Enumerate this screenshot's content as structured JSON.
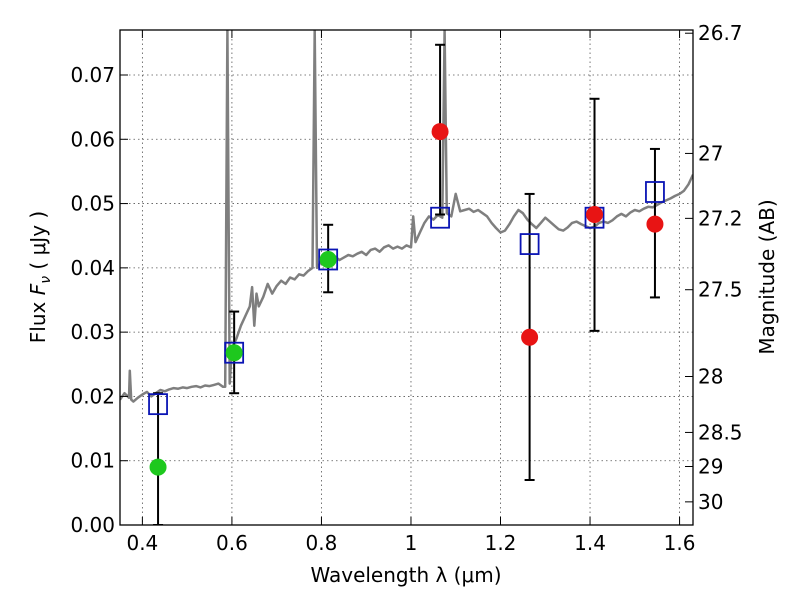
{
  "chart_data": {
    "type": "scatter",
    "xlabel": "Wavelength  λ (μm)",
    "ylabel_prefix": "Flux  ",
    "ylabel_symbol": "F",
    "ylabel_subscript": "ν",
    "ylabel_suffix": " ( μJy )",
    "ylabel_right": "Magnitude (AB)",
    "xlim": [
      0.35,
      1.63
    ],
    "ylim": [
      0.0,
      0.077
    ],
    "grid": true,
    "x_ticks": [
      0.4,
      0.6,
      0.8,
      1.0,
      1.2,
      1.4,
      1.6
    ],
    "x_tick_labels": [
      "0.4",
      "0.6",
      "0.8",
      "1",
      "1.2",
      "1.4",
      "1.6"
    ],
    "y_ticks": [
      0.0,
      0.01,
      0.02,
      0.03,
      0.04,
      0.05,
      0.06,
      0.07
    ],
    "y_tick_labels": [
      "0.00",
      "0.01",
      "0.02",
      "0.03",
      "0.04",
      "0.05",
      "0.06",
      "0.07"
    ],
    "right_ticks": [
      {
        "flux": 0.0765,
        "label": "26.7"
      },
      {
        "flux": 0.0578,
        "label": "27"
      },
      {
        "flux": 0.0477,
        "label": "27.2"
      },
      {
        "flux": 0.0366,
        "label": "27.5"
      },
      {
        "flux": 0.0231,
        "label": "28"
      },
      {
        "flux": 0.0144,
        "label": "28.5"
      },
      {
        "flux": 0.0091,
        "label": "29"
      },
      {
        "flux": 0.0036,
        "label": "30"
      }
    ],
    "series": [
      {
        "name": "model-spectrum",
        "style": "line",
        "color": "#7f7f7f",
        "x": [
          0.35,
          0.36,
          0.37,
          0.372,
          0.375,
          0.38,
          0.39,
          0.4,
          0.41,
          0.42,
          0.43,
          0.44,
          0.45,
          0.46,
          0.47,
          0.48,
          0.49,
          0.5,
          0.51,
          0.52,
          0.53,
          0.54,
          0.55,
          0.56,
          0.57,
          0.58,
          0.585,
          0.59,
          0.595,
          0.6,
          0.61,
          0.62,
          0.63,
          0.64,
          0.645,
          0.65,
          0.655,
          0.66,
          0.67,
          0.68,
          0.69,
          0.7,
          0.71,
          0.72,
          0.73,
          0.74,
          0.75,
          0.76,
          0.77,
          0.78,
          0.785,
          0.79,
          0.795,
          0.8,
          0.81,
          0.82,
          0.83,
          0.84,
          0.85,
          0.86,
          0.87,
          0.88,
          0.89,
          0.9,
          0.91,
          0.92,
          0.93,
          0.94,
          0.95,
          0.96,
          0.97,
          0.98,
          0.99,
          1.0,
          1.005,
          1.01,
          1.02,
          1.03,
          1.04,
          1.05,
          1.06,
          1.07,
          1.075,
          1.08,
          1.09,
          1.1,
          1.11,
          1.12,
          1.13,
          1.14,
          1.15,
          1.16,
          1.17,
          1.18,
          1.19,
          1.2,
          1.21,
          1.22,
          1.23,
          1.24,
          1.25,
          1.26,
          1.27,
          1.28,
          1.29,
          1.3,
          1.31,
          1.32,
          1.33,
          1.34,
          1.35,
          1.36,
          1.37,
          1.38,
          1.39,
          1.4,
          1.41,
          1.42,
          1.43,
          1.44,
          1.45,
          1.46,
          1.47,
          1.48,
          1.49,
          1.5,
          1.51,
          1.52,
          1.53,
          1.54,
          1.55,
          1.56,
          1.57,
          1.58,
          1.59,
          1.6,
          1.61,
          1.62,
          1.63
        ],
        "y": [
          0.0195,
          0.0205,
          0.0198,
          0.024,
          0.0195,
          0.0192,
          0.0198,
          0.0203,
          0.0207,
          0.02,
          0.0205,
          0.021,
          0.0208,
          0.0211,
          0.0213,
          0.0212,
          0.0214,
          0.0213,
          0.0215,
          0.0216,
          0.0214,
          0.0217,
          0.0216,
          0.0218,
          0.022,
          0.0215,
          0.0215,
          0.077,
          0.022,
          0.0275,
          0.029,
          0.031,
          0.0325,
          0.034,
          0.037,
          0.031,
          0.036,
          0.034,
          0.0355,
          0.0375,
          0.036,
          0.0372,
          0.038,
          0.0375,
          0.0385,
          0.0382,
          0.039,
          0.0388,
          0.0395,
          0.04,
          0.077,
          0.04,
          0.0405,
          0.041,
          0.0415,
          0.041,
          0.0418,
          0.0412,
          0.0416,
          0.042,
          0.0418,
          0.0422,
          0.0425,
          0.042,
          0.0428,
          0.043,
          0.0425,
          0.0432,
          0.0435,
          0.043,
          0.0433,
          0.043,
          0.0435,
          0.0432,
          0.048,
          0.044,
          0.0455,
          0.047,
          0.048,
          0.0475,
          0.0482,
          0.0478,
          0.077,
          0.0485,
          0.048,
          0.0515,
          0.0488,
          0.049,
          0.0492,
          0.0487,
          0.049,
          0.0485,
          0.048,
          0.047,
          0.0462,
          0.0455,
          0.0458,
          0.0468,
          0.048,
          0.049,
          0.0485,
          0.0475,
          0.0468,
          0.0462,
          0.047,
          0.0478,
          0.0472,
          0.0466,
          0.046,
          0.0458,
          0.0463,
          0.047,
          0.0472,
          0.0468,
          0.0465,
          0.0462,
          0.0464,
          0.047,
          0.0472,
          0.047,
          0.0474,
          0.048,
          0.0484,
          0.048,
          0.0486,
          0.049,
          0.0488,
          0.0492,
          0.0495,
          0.0494,
          0.0498,
          0.0502,
          0.0505,
          0.0508,
          0.0512,
          0.0515,
          0.052,
          0.053,
          0.0545
        ]
      },
      {
        "name": "model-photometry",
        "style": "open-square",
        "color": "#0a14b4",
        "x": [
          0.435,
          0.605,
          0.815,
          1.065,
          1.265,
          1.41,
          1.545
        ],
        "y": [
          0.0188,
          0.0268,
          0.0413,
          0.0478,
          0.0437,
          0.0478,
          0.0518
        ]
      },
      {
        "name": "observed-optical",
        "style": "filled-circle",
        "color": "#1ec81e",
        "x": [
          0.435,
          0.605,
          0.815
        ],
        "y": [
          0.009,
          0.0268,
          0.0413
        ],
        "yerr_low": [
          0.0,
          0.0205,
          0.0362
        ],
        "yerr_high": [
          0.0205,
          0.0332,
          0.0467
        ]
      },
      {
        "name": "observed-infrared",
        "style": "filled-circle",
        "color": "#e81414",
        "x": [
          1.065,
          1.265,
          1.41,
          1.545
        ],
        "y": [
          0.0612,
          0.0292,
          0.0483,
          0.0468
        ],
        "yerr_low": [
          0.0483,
          0.007,
          0.0302,
          0.0354
        ],
        "yerr_high": [
          0.0747,
          0.0515,
          0.0663,
          0.0585
        ]
      }
    ]
  }
}
